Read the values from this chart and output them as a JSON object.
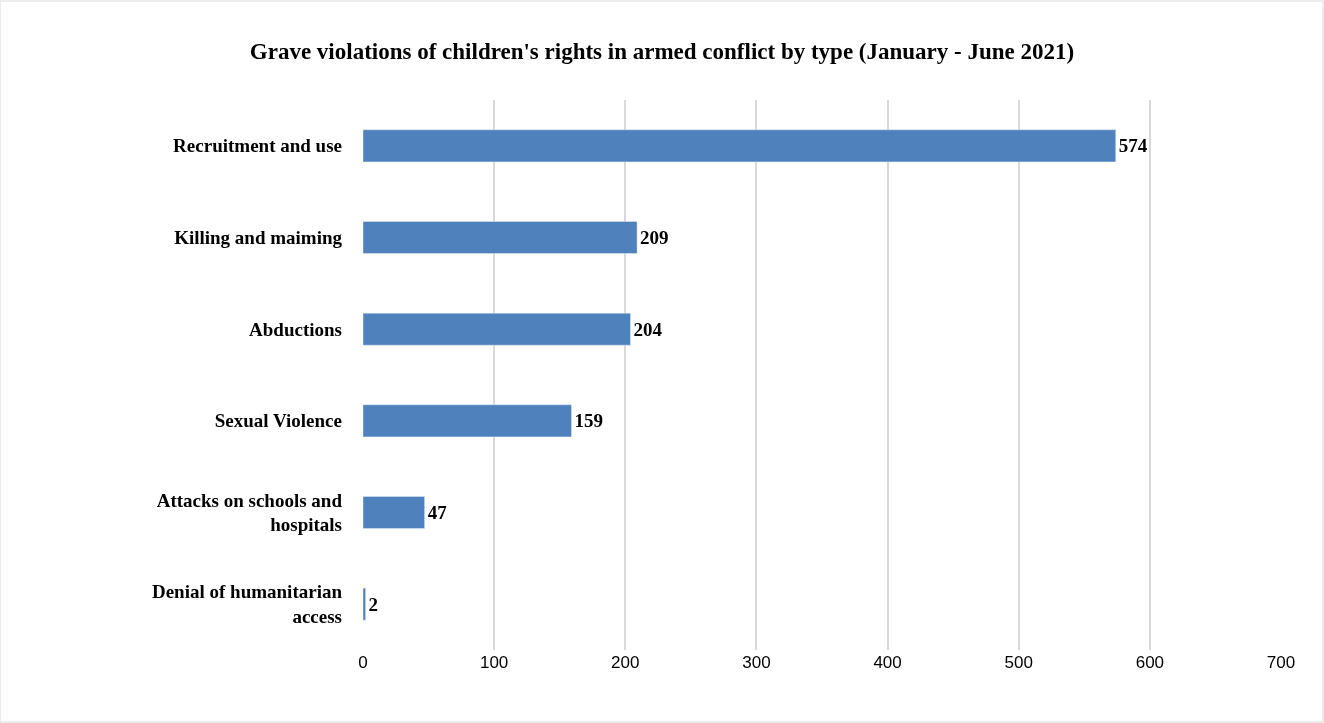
{
  "chart_data": {
    "type": "bar",
    "orientation": "horizontal",
    "title": "Grave violations of children's rights in armed conflict by type (January - June 2021)",
    "categories": [
      "Recruitment and use",
      "Killing and maiming",
      "Abductions",
      "Sexual Violence",
      "Attacks on schools and hospitals",
      "Denial of humanitarian access"
    ],
    "values": [
      574,
      209,
      204,
      159,
      47,
      2
    ],
    "color": "#4f81bd",
    "data_labels": true,
    "xlim": [
      0,
      700
    ],
    "xticks": [
      0,
      100,
      200,
      300,
      400,
      500,
      600,
      700
    ],
    "grid": "x",
    "legend": false
  }
}
